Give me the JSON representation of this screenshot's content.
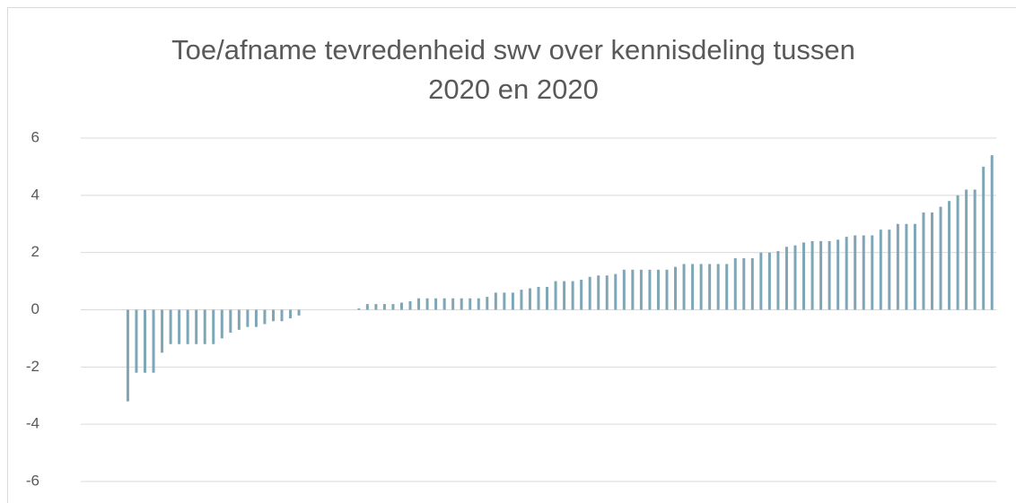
{
  "chart_data": {
    "type": "bar",
    "title": [
      "Toe/afname tevredenheid swv over kennisdeling tussen",
      "2020 en 2020"
    ],
    "values": [
      0,
      0,
      0,
      0,
      0,
      -3.2,
      -2.2,
      -2.2,
      -2.2,
      -1.5,
      -1.2,
      -1.2,
      -1.2,
      -1.2,
      -1.2,
      -1.2,
      -1.0,
      -0.8,
      -0.7,
      -0.6,
      -0.6,
      -0.5,
      -0.4,
      -0.4,
      -0.3,
      -0.2,
      0,
      0,
      0,
      0,
      0,
      0,
      0.05,
      0.2,
      0.2,
      0.2,
      0.2,
      0.25,
      0.3,
      0.4,
      0.4,
      0.4,
      0.4,
      0.4,
      0.4,
      0.4,
      0.4,
      0.45,
      0.6,
      0.6,
      0.6,
      0.7,
      0.75,
      0.8,
      0.8,
      1.0,
      1.0,
      1.0,
      1.05,
      1.15,
      1.2,
      1.2,
      1.25,
      1.4,
      1.4,
      1.4,
      1.4,
      1.4,
      1.4,
      1.5,
      1.6,
      1.6,
      1.6,
      1.6,
      1.6,
      1.6,
      1.8,
      1.8,
      1.8,
      2.0,
      2.0,
      2.05,
      2.2,
      2.25,
      2.35,
      2.4,
      2.4,
      2.4,
      2.45,
      2.55,
      2.6,
      2.6,
      2.6,
      2.8,
      2.8,
      3.0,
      3.0,
      3.0,
      3.4,
      3.4,
      3.6,
      3.8,
      4.0,
      4.2,
      4.2,
      5.0,
      5.4
    ],
    "color": "#7ea6b6",
    "ylim": [
      -6,
      6
    ],
    "yticks": [
      6,
      4,
      2,
      0,
      -2,
      -4,
      -6
    ],
    "grid": true
  }
}
